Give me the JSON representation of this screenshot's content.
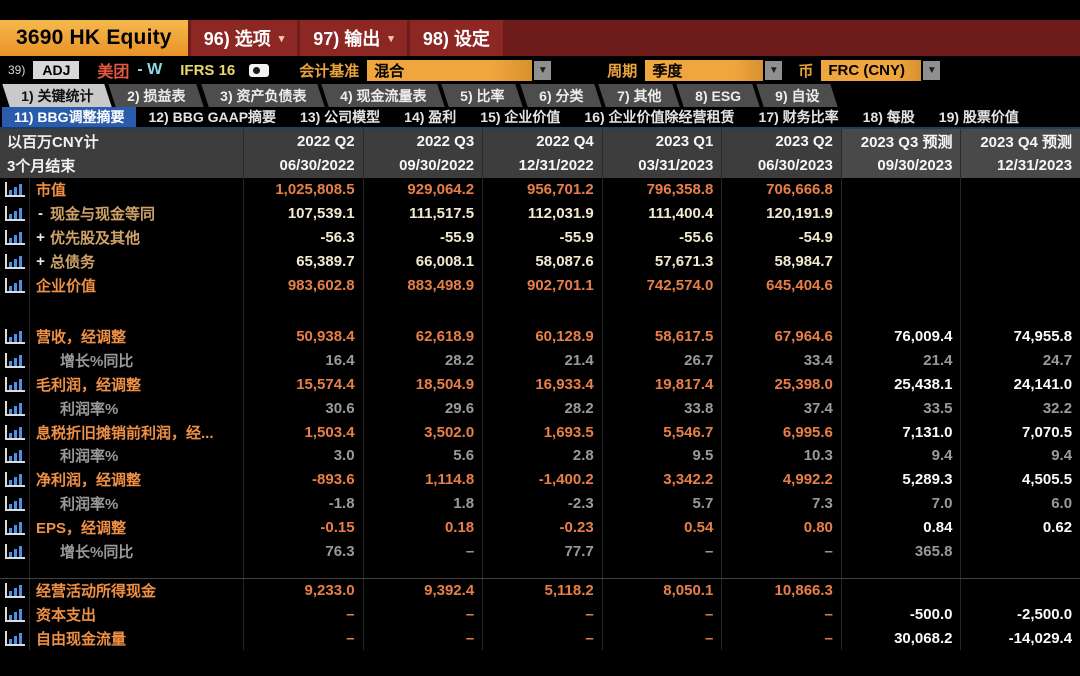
{
  "titlebar": {
    "security": "3690 HK Equity",
    "menus": [
      {
        "label": "96) 选项",
        "caret": true
      },
      {
        "label": "97) 输出",
        "caret": true
      },
      {
        "label": "98) 设定",
        "caret": false
      }
    ]
  },
  "settings": {
    "row_number": "39)",
    "adj_badge": "ADJ",
    "company": "美团",
    "company_suffix": "- W",
    "standard": "IFRS 16",
    "basis_label": "会计基准",
    "basis_value": "混合",
    "period_label": "周期",
    "period_value": "季度",
    "currency_label": "币",
    "currency_value": "FRC (CNY)"
  },
  "tabs": [
    {
      "label": "1) 关键统计",
      "active": true
    },
    {
      "label": "2) 损益表",
      "active": false
    },
    {
      "label": "3) 资产负债表",
      "active": false
    },
    {
      "label": "4) 现金流量表",
      "active": false
    },
    {
      "label": "5) 比率",
      "active": false
    },
    {
      "label": "6) 分类",
      "active": false
    },
    {
      "label": "7) 其他",
      "active": false
    },
    {
      "label": "8) ESG",
      "active": false
    },
    {
      "label": "9) 自设",
      "active": false
    }
  ],
  "subtabs": [
    {
      "label": "11) BBG调整摘要",
      "active": true
    },
    {
      "label": "12) BBG GAAP摘要",
      "active": false
    },
    {
      "label": "13) 公司模型",
      "active": false
    },
    {
      "label": "14) 盈利",
      "active": false
    },
    {
      "label": "15) 企业价值",
      "active": false
    },
    {
      "label": "16) 企业价值除经营租赁",
      "active": false
    },
    {
      "label": "17) 财务比率",
      "active": false
    },
    {
      "label": "18) 每股",
      "active": false
    },
    {
      "label": "19) 股票价值",
      "active": false
    }
  ],
  "table": {
    "unit_label": "以百万CNY计",
    "period_label": "3个月结束",
    "columns": [
      {
        "quarter": "2022 Q2",
        "date": "06/30/2022",
        "forecast": false
      },
      {
        "quarter": "2022 Q3",
        "date": "09/30/2022",
        "forecast": false
      },
      {
        "quarter": "2022 Q4",
        "date": "12/31/2022",
        "forecast": false
      },
      {
        "quarter": "2023 Q1",
        "date": "03/31/2023",
        "forecast": false
      },
      {
        "quarter": "2023 Q2",
        "date": "06/30/2023",
        "forecast": false
      },
      {
        "quarter": "2023 Q3 预测",
        "date": "09/30/2023",
        "forecast": true
      },
      {
        "quarter": "2023 Q4 预测",
        "date": "12/31/2023",
        "forecast": true
      }
    ],
    "rows": [
      {
        "label": "市值",
        "type": "key",
        "values": [
          "1,025,808.5",
          "929,064.2",
          "956,701.2",
          "796,358.8",
          "706,666.8",
          "",
          ""
        ]
      },
      {
        "label": "现金与现金等同",
        "prefix": "-",
        "type": "comp",
        "values": [
          "107,539.1",
          "111,517.5",
          "112,031.9",
          "111,400.4",
          "120,191.9",
          "",
          ""
        ]
      },
      {
        "label": "优先股及其他",
        "prefix": "+",
        "type": "comp",
        "values": [
          "-56.3",
          "-55.9",
          "-55.9",
          "-55.6",
          "-54.9",
          "",
          ""
        ]
      },
      {
        "label": "总债务",
        "prefix": "+",
        "type": "comp",
        "values": [
          "65,389.7",
          "66,008.1",
          "58,087.6",
          "57,671.3",
          "58,984.7",
          "",
          ""
        ]
      },
      {
        "label": "企业价值",
        "type": "key",
        "values": [
          "983,602.8",
          "883,498.9",
          "902,701.1",
          "742,574.0",
          "645,404.6",
          "",
          ""
        ]
      },
      {
        "type": "spacer"
      },
      {
        "label": "营收，经调整",
        "type": "key",
        "values": [
          "50,938.4",
          "62,618.9",
          "60,128.9",
          "58,617.5",
          "67,964.6",
          "76,009.4",
          "74,955.8"
        ]
      },
      {
        "label": "增长%同比",
        "type": "sub",
        "values": [
          "16.4",
          "28.2",
          "21.4",
          "26.7",
          "33.4",
          "21.4",
          "24.7"
        ]
      },
      {
        "label": "毛利润，经调整",
        "type": "key",
        "values": [
          "15,574.4",
          "18,504.9",
          "16,933.4",
          "19,817.4",
          "25,398.0",
          "25,438.1",
          "24,141.0"
        ]
      },
      {
        "label": "利润率%",
        "type": "sub",
        "values": [
          "30.6",
          "29.6",
          "28.2",
          "33.8",
          "37.4",
          "33.5",
          "32.2"
        ]
      },
      {
        "label": "息税折旧摊销前利润，经...",
        "type": "key",
        "values": [
          "1,503.4",
          "3,502.0",
          "1,693.5",
          "5,546.7",
          "6,995.6",
          "7,131.0",
          "7,070.5"
        ]
      },
      {
        "label": "利润率%",
        "type": "sub",
        "values": [
          "3.0",
          "5.6",
          "2.8",
          "9.5",
          "10.3",
          "9.4",
          "9.4"
        ]
      },
      {
        "label": "净利润，经调整",
        "type": "key",
        "values": [
          "-893.6",
          "1,114.8",
          "-1,400.2",
          "3,342.2",
          "4,992.2",
          "5,289.3",
          "4,505.5"
        ]
      },
      {
        "label": "利润率%",
        "type": "sub",
        "values": [
          "-1.8",
          "1.8",
          "-2.3",
          "5.7",
          "7.3",
          "7.0",
          "6.0"
        ]
      },
      {
        "label": "EPS，经调整",
        "type": "key",
        "values": [
          "-0.15",
          "0.18",
          "-0.23",
          "0.54",
          "0.80",
          "0.84",
          "0.62"
        ]
      },
      {
        "label": "增长%同比",
        "type": "sub",
        "values": [
          "76.3",
          "–",
          "77.7",
          "–",
          "–",
          "365.8",
          ""
        ]
      },
      {
        "type": "spacer2"
      },
      {
        "label": "经营活动所得现金",
        "type": "key",
        "values": [
          "9,233.0",
          "9,392.4",
          "5,118.2",
          "8,050.1",
          "10,866.3",
          "",
          ""
        ]
      },
      {
        "label": "资本支出",
        "type": "key",
        "values": [
          "–",
          "–",
          "–",
          "–",
          "–",
          "-500.0",
          "-2,500.0"
        ]
      },
      {
        "label": "自由现金流量",
        "type": "key",
        "values": [
          "–",
          "–",
          "–",
          "–",
          "–",
          "30,068.2",
          "-14,029.4"
        ]
      }
    ]
  },
  "colors": {
    "titlebar_red": "#6e1b1b",
    "title_orange": "#f0a43c",
    "dropdown_orange": "#efa43c",
    "active_subtab_blue": "#2a5cae",
    "key_label_orange": "#f09044",
    "key_value_orange": "#e87f49",
    "component_value_cream": "#f2ead0",
    "sub_value_gray": "#9a9a9a",
    "forecast_value_white": "#fbfbfb",
    "company_red": "#e25840",
    "share_class_cyan": "#8fd8e8",
    "standard_yellow": "#e6d96b"
  }
}
